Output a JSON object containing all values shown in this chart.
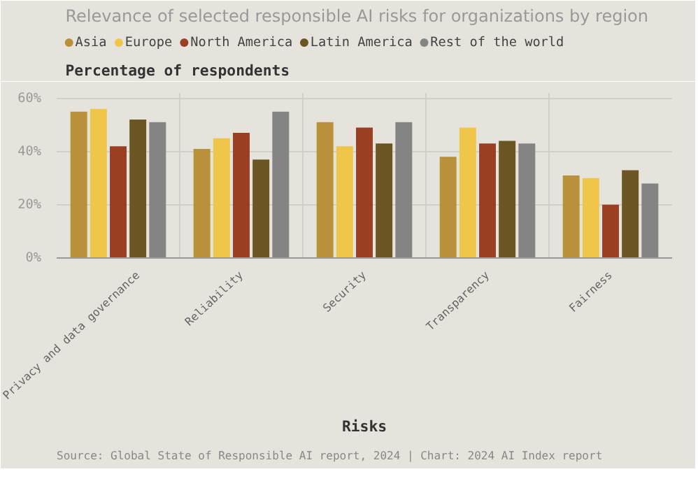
{
  "chart_data": {
    "type": "bar",
    "title": "Relevance of selected responsible AI risks for organizations by region",
    "ylabel": "Percentage of respondents",
    "xlabel": "Risks",
    "categories": [
      "Privacy and data governance",
      "Reliability",
      "Security",
      "Transparency",
      "Fairness"
    ],
    "series": [
      {
        "name": "Asia",
        "color": "#b8913a",
        "values": [
          55,
          41,
          51,
          38,
          31
        ]
      },
      {
        "name": "Europe",
        "color": "#efc54a",
        "values": [
          56,
          45,
          42,
          49,
          30
        ]
      },
      {
        "name": "North America",
        "color": "#9a3f22",
        "values": [
          42,
          47,
          49,
          43,
          20
        ]
      },
      {
        "name": "Latin America",
        "color": "#6b5522",
        "values": [
          52,
          37,
          43,
          44,
          33
        ]
      },
      {
        "name": "Rest of the world",
        "color": "#848484",
        "values": [
          51,
          55,
          51,
          43,
          28
        ]
      }
    ],
    "ylim": [
      0,
      62
    ],
    "yticks": [
      {
        "value": 0,
        "label": "0%"
      },
      {
        "value": 20,
        "label": "20%"
      },
      {
        "value": 40,
        "label": "40%"
      },
      {
        "value": 60,
        "label": "60%"
      }
    ],
    "grid": true,
    "legend": "top left",
    "annotations": [
      "Source: Global State of Responsible AI report, 2024 | Chart: 2024 AI Index report"
    ]
  }
}
